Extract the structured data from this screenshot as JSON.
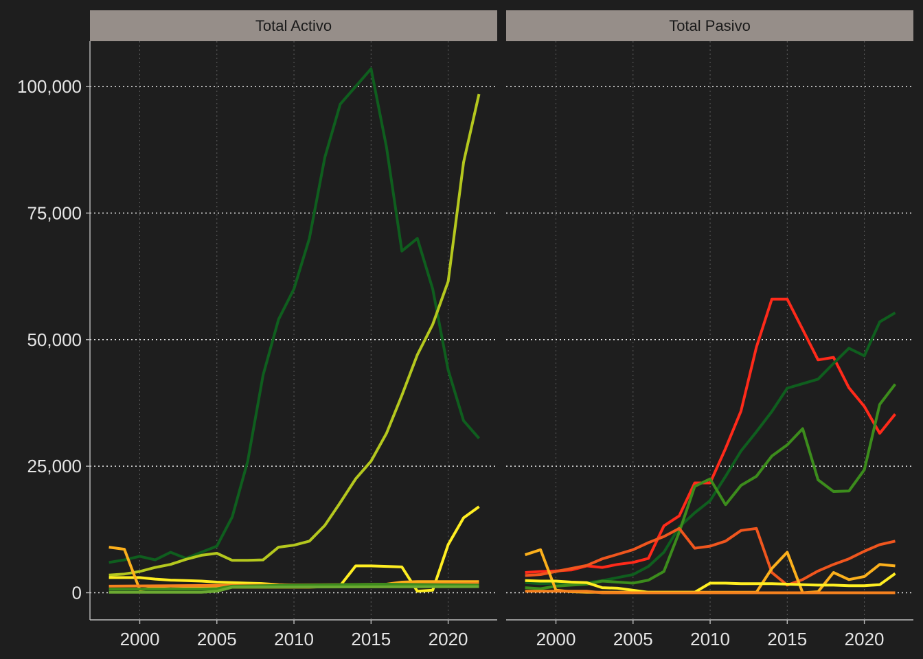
{
  "chart_data": {
    "type": "line",
    "x_range": [
      1998,
      2022
    ],
    "y_range": [
      0,
      105000
    ],
    "x_ticks": [
      "2000",
      "2005",
      "2010",
      "2015",
      "2020"
    ],
    "y_ticks": [
      "0",
      "25,000",
      "50,000",
      "75,000",
      "100,000"
    ],
    "grid": true,
    "legend": "none",
    "panels": [
      {
        "title": "Total Activo",
        "series": [
          {
            "color": "#0f5e1e",
            "x": [
              1998,
              1999,
              2000,
              2001,
              2002,
              2003,
              2004,
              2005,
              2006,
              2007,
              2008,
              2009,
              2010,
              2011,
              2012,
              2013,
              2014,
              2015,
              2016,
              2017,
              2018,
              2019,
              2020,
              2021,
              2022
            ],
            "y": [
              6000,
              6500,
              7200,
              6500,
              8000,
              6800,
              8000,
              9200,
              15000,
              26000,
              43000,
              54000,
              60000,
              70000,
              86000,
              96500,
              100000,
              103500,
              88000,
              67500,
              70000,
              60000,
              44000,
              34000,
              30500
            ]
          },
          {
            "color": "#b5c81e",
            "x": [
              1998,
              1999,
              2000,
              2001,
              2002,
              2003,
              2004,
              2005,
              2006,
              2007,
              2008,
              2009,
              2010,
              2011,
              2012,
              2013,
              2014,
              2015,
              2016,
              2017,
              2018,
              2019,
              2020,
              2021,
              2022
            ],
            "y": [
              3500,
              3700,
              4200,
              5000,
              5600,
              6600,
              7400,
              7800,
              6400,
              6400,
              6500,
              9000,
              9400,
              10200,
              13300,
              17800,
              22500,
              26000,
              31500,
              39000,
              47000,
              53000,
              61500,
              85000,
              98500
            ]
          },
          {
            "color": "#ffee22",
            "x": [
              1998,
              1999,
              2000,
              2001,
              2002,
              2003,
              2004,
              2005,
              2006,
              2007,
              2008,
              2009,
              2010,
              2011,
              2012,
              2013,
              2014,
              2015,
              2016,
              2017,
              2018,
              2019,
              2020,
              2021,
              2022
            ],
            "y": [
              3000,
              3000,
              3000,
              2700,
              2500,
              2400,
              2300,
              2100,
              2000,
              1900,
              1800,
              1600,
              1500,
              1400,
              1400,
              1400,
              5300,
              5300,
              5200,
              5100,
              300,
              500,
              9500,
              14800,
              17000
            ]
          },
          {
            "color": "#fcb01c",
            "x": [
              1998,
              1999,
              2000,
              2001,
              2002,
              2003,
              2004,
              2005,
              2006,
              2007,
              2008,
              2009,
              2010,
              2011,
              2012,
              2013,
              2014,
              2015,
              2016,
              2017,
              2018,
              2019,
              2020,
              2021,
              2022
            ],
            "y": [
              9000,
              8600,
              600,
              1000,
              800,
              900,
              900,
              1000,
              1100,
              1100,
              1100,
              1100,
              1100,
              1100,
              1200,
              1200,
              1200,
              1300,
              1700,
              2100,
              2200,
              2200,
              2200,
              2200,
              2200
            ]
          },
          {
            "color": "#f6821f",
            "x": [
              1998,
              2022
            ],
            "y": [
              1300,
              1800
            ]
          },
          {
            "color": "#3c8c1c",
            "x": [
              1998,
              2004,
              2005,
              2006,
              2008,
              2010,
              2013,
              2016,
              2022
            ],
            "y": [
              700,
              700,
              800,
              1300,
              1400,
              1500,
              1600,
              1700,
              1500
            ]
          },
          {
            "color": "#6ba832",
            "x": [
              1998,
              2004,
              2005,
              2006,
              2022
            ],
            "y": [
              100,
              100,
              300,
              1100,
              1200
            ]
          }
        ]
      },
      {
        "title": "Total Pasivo",
        "series": [
          {
            "color": "#ff2a1a",
            "x": [
              1998,
              1999,
              2000,
              2001,
              2002,
              2003,
              2004,
              2005,
              2006,
              2007,
              2008,
              2009,
              2010,
              2011,
              2012,
              2013,
              2014,
              2015,
              2016,
              2017,
              2018,
              2019,
              2020,
              2021,
              2022
            ],
            "y": [
              4000,
              4200,
              4300,
              4500,
              5300,
              5000,
              5600,
              6000,
              6800,
              13200,
              15200,
              21700,
              21700,
              28500,
              35900,
              48500,
              58000,
              58000,
              52000,
              46000,
              46500,
              40500,
              36800,
              31500,
              35300
            ]
          },
          {
            "color": "#0f5e1e",
            "x": [
              1998,
              1999,
              2000,
              2001,
              2002,
              2003,
              2004,
              2005,
              2006,
              2007,
              2008,
              2009,
              2010,
              2011,
              2012,
              2013,
              2014,
              2015,
              2016,
              2017,
              2018,
              2019,
              2020,
              2021,
              2022
            ],
            "y": [
              2000,
              1800,
              1900,
              1800,
              2000,
              2400,
              3000,
              3600,
              5200,
              8000,
              13000,
              15800,
              18200,
              23000,
              28000,
              31800,
              35800,
              40400,
              41300,
              42200,
              45300,
              48300,
              46800,
              53500,
              55300
            ]
          },
          {
            "color": "#3c8c1c",
            "x": [
              1998,
              1999,
              2000,
              2001,
              2002,
              2003,
              2004,
              2005,
              2006,
              2007,
              2008,
              2009,
              2010,
              2011,
              2012,
              2013,
              2014,
              2015,
              2016,
              2017,
              2018,
              2019,
              2020,
              2021,
              2022
            ],
            "y": [
              1000,
              800,
              1300,
              1500,
              1700,
              2300,
              2100,
              1900,
              2500,
              4200,
              12000,
              21000,
              22500,
              17400,
              21200,
              23000,
              27000,
              29200,
              32400,
              22300,
              20000,
              20100,
              24300,
              37200,
              41200
            ]
          },
          {
            "color": "#f0561e",
            "x": [
              1998,
              1999,
              2000,
              2001,
              2002,
              2003,
              2004,
              2005,
              2006,
              2007,
              2008,
              2009,
              2010,
              2011,
              2012,
              2013,
              2014,
              2015,
              2016,
              2017,
              2018,
              2019,
              2020,
              2021,
              2022
            ],
            "y": [
              3400,
              3600,
              4200,
              4800,
              5400,
              6700,
              7600,
              8500,
              9900,
              11100,
              12700,
              8800,
              9200,
              10200,
              12300,
              12700,
              4000,
              1500,
              2600,
              4300,
              5600,
              6700,
              8200,
              9500,
              10200
            ]
          },
          {
            "color": "#fcb01c",
            "x": [
              1998,
              1999,
              2000,
              2001,
              2002,
              2003,
              2004,
              2005,
              2006,
              2007,
              2008,
              2009,
              2010,
              2011,
              2012,
              2013,
              2014,
              2015,
              2016,
              2017,
              2018,
              2019,
              2020,
              2021,
              2022
            ],
            "y": [
              7500,
              8500,
              500,
              200,
              100,
              100,
              100,
              100,
              100,
              100,
              100,
              100,
              100,
              100,
              100,
              100,
              4800,
              8000,
              0,
              200,
              4000,
              2600,
              3200,
              5600,
              5300
            ]
          },
          {
            "color": "#ffee22",
            "x": [
              1998,
              1999,
              2000,
              2001,
              2002,
              2003,
              2004,
              2005,
              2006,
              2007,
              2008,
              2009,
              2010,
              2011,
              2012,
              2013,
              2014,
              2015,
              2016,
              2017,
              2018,
              2019,
              2020,
              2021,
              2022
            ],
            "y": [
              2400,
              2300,
              2300,
              2100,
              2000,
              1000,
              900,
              500,
              100,
              100,
              100,
              100,
              1900,
              1900,
              1800,
              1800,
              1800,
              1700,
              1600,
              1500,
              1500,
              1400,
              1400,
              1600,
              3800
            ]
          },
          {
            "color": "#f6821f",
            "x": [
              1998,
              2002,
              2003,
              2022
            ],
            "y": [
              300,
              300,
              0,
              0
            ]
          }
        ]
      }
    ]
  }
}
